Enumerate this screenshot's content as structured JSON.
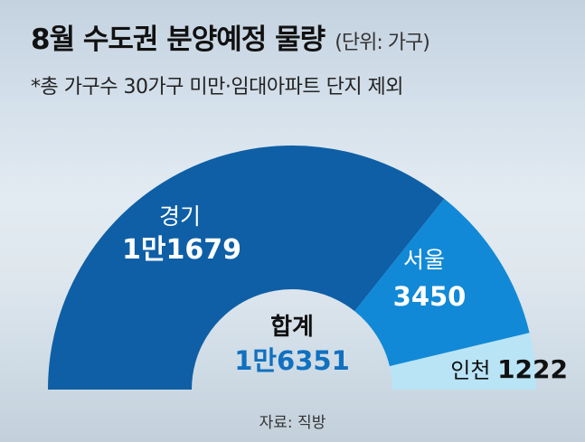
{
  "title": "8월 수도권 분양예정 물량",
  "unit": "(단위: 가구)",
  "subtitle": "*총 가구수 30가구 미만·임대아파트 단지 제외",
  "source": "자료: 직방",
  "chart_data": {
    "type": "pie",
    "variant": "half-donut",
    "title": "8월 수도권 분양예정 물량",
    "unit": "가구",
    "total": {
      "label": "합계",
      "value_text": "1만6351",
      "value": 16351
    },
    "slices": [
      {
        "name": "경기",
        "value_text": "1만1679",
        "value": 11679,
        "color": "#0e5fa6",
        "text_color": "#ffffff"
      },
      {
        "name": "서울",
        "value_text": "3450",
        "value": 3450,
        "color": "#1189d6",
        "text_color": "#ffffff"
      },
      {
        "name": "인천",
        "value_text": "1222",
        "value": 1222,
        "color": "#b8e4f6",
        "text_color": "#111111"
      }
    ],
    "colors": {
      "total_text": "#1170c0",
      "total_label": "#111111"
    }
  }
}
